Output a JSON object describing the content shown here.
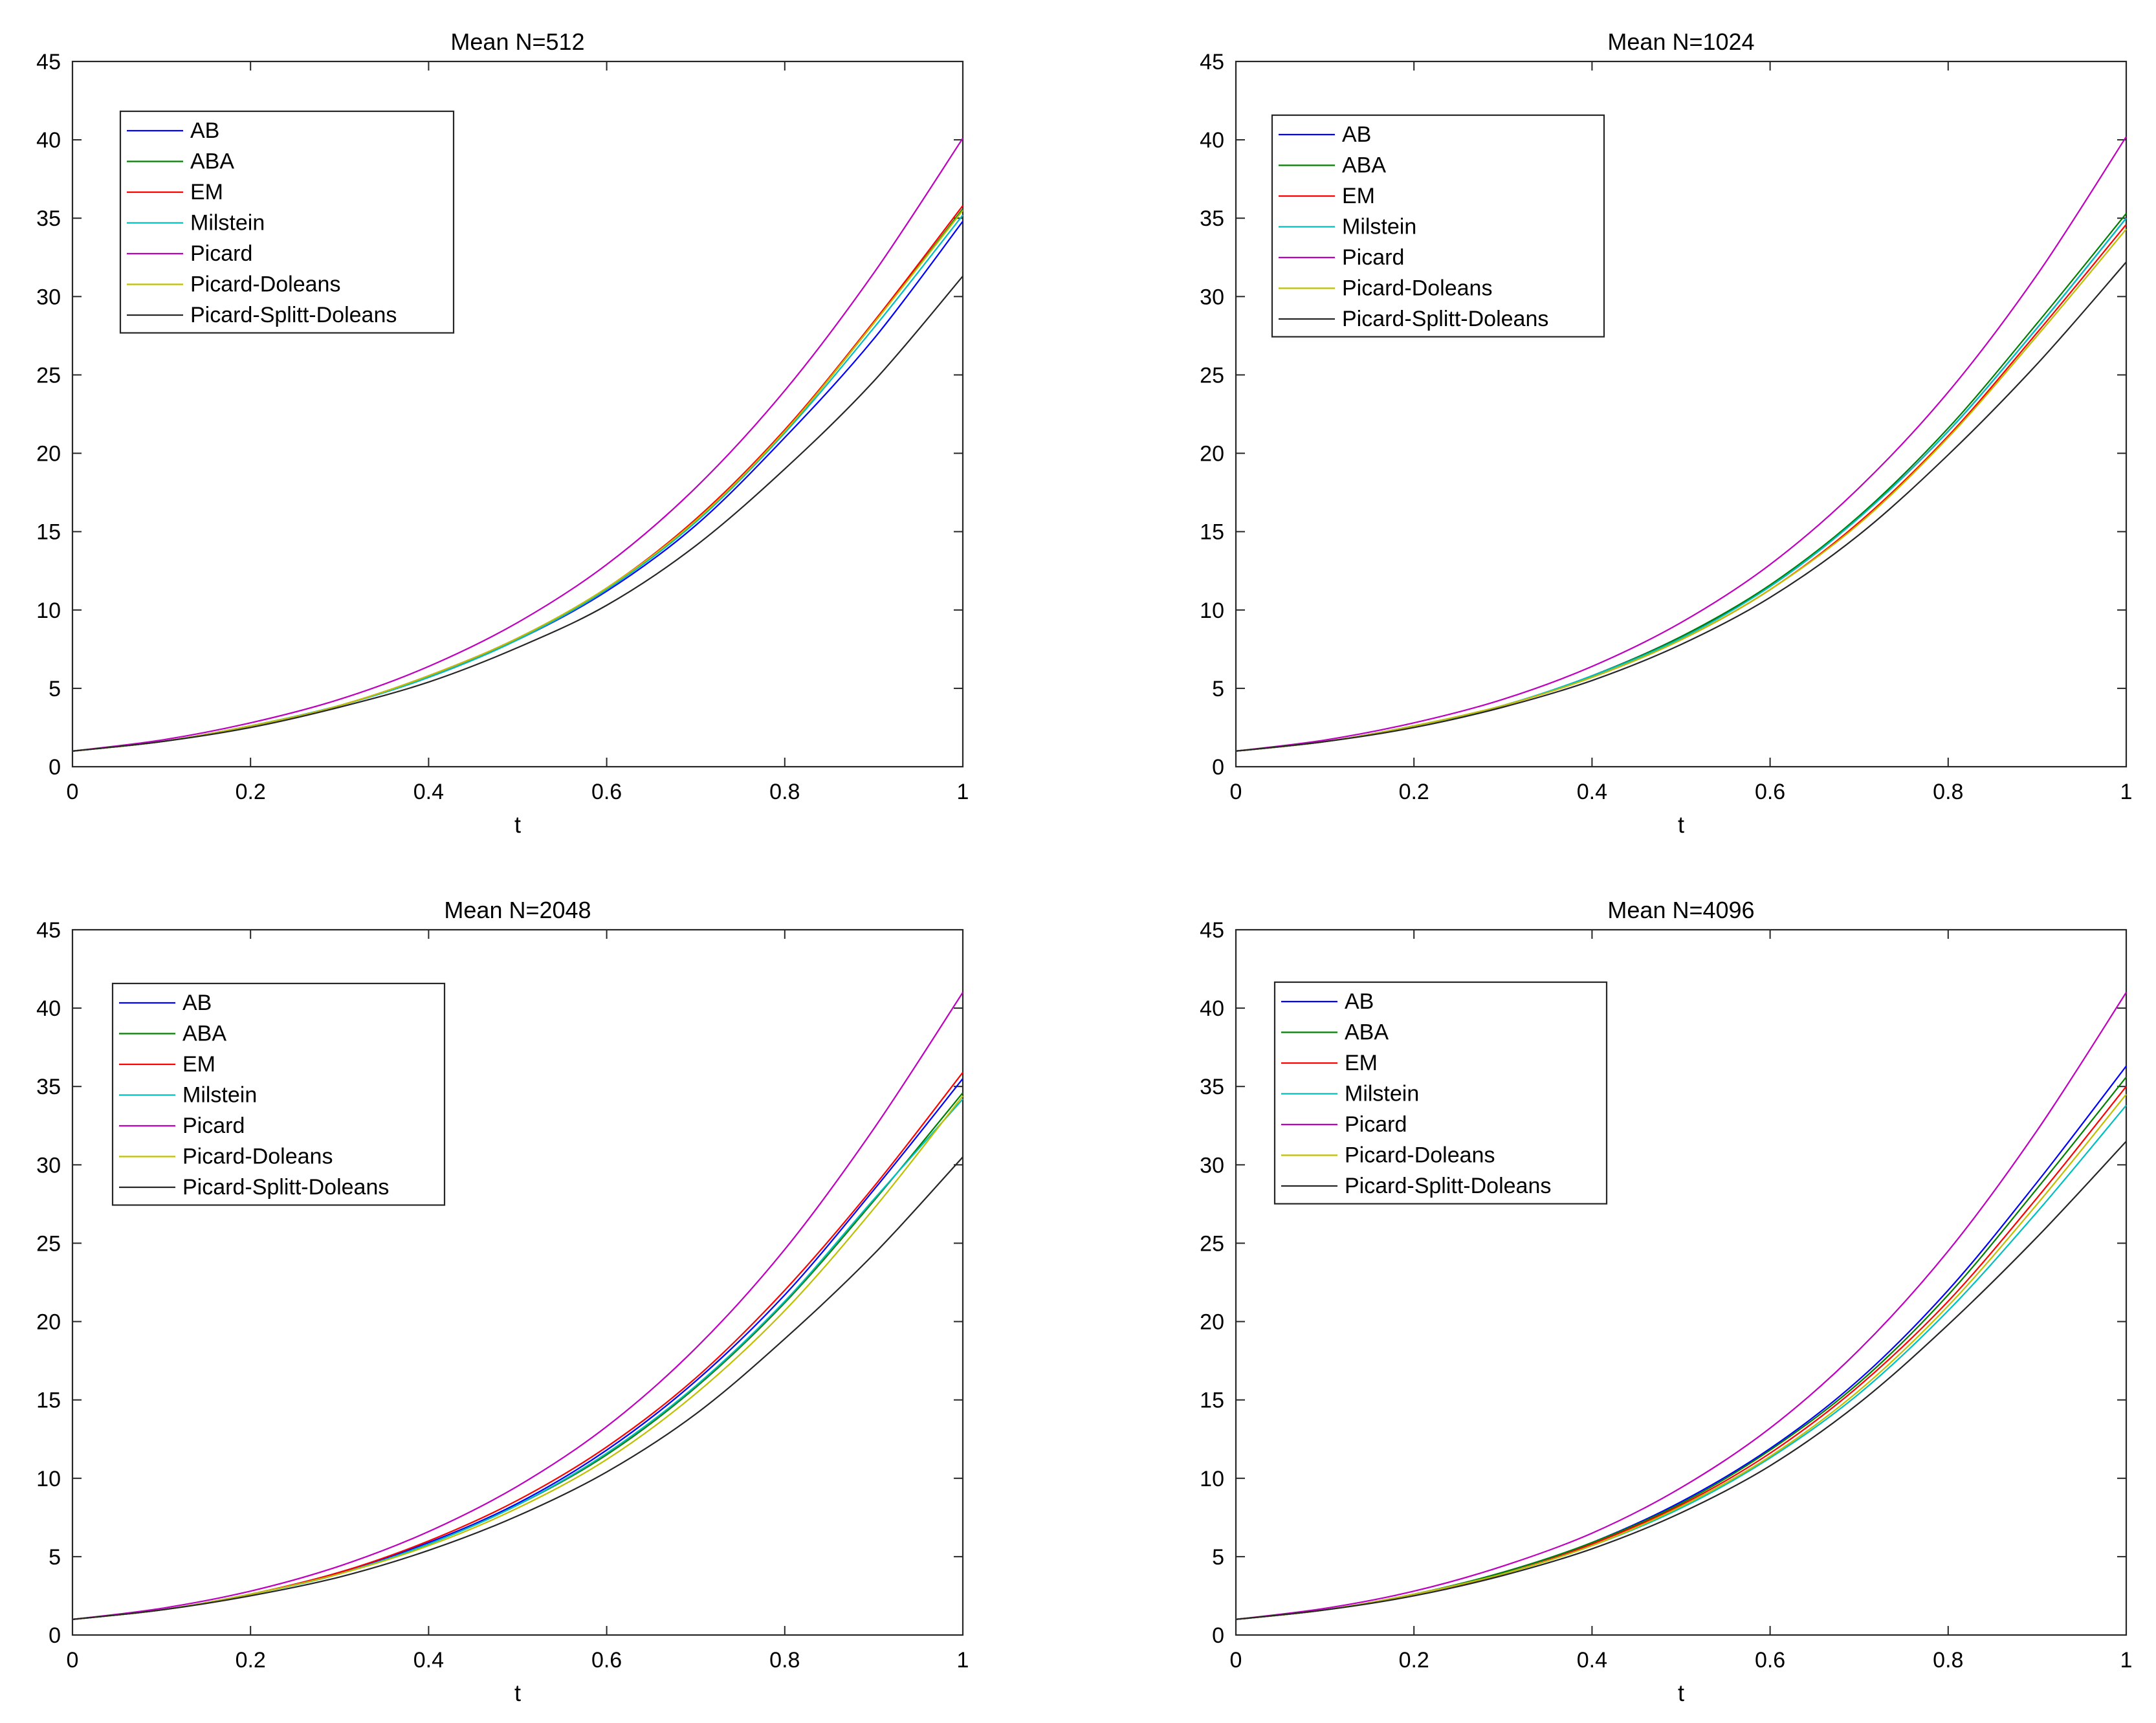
{
  "chart_data": [
    {
      "type": "line",
      "title": "Mean N=512",
      "xlabel": "t",
      "ylabel": "",
      "xlim": [
        0,
        1
      ],
      "ylim": [
        0,
        45
      ],
      "xticks": [
        0,
        0.2,
        0.4,
        0.6,
        0.8,
        1
      ],
      "xtick_labels": [
        "0",
        "0.2",
        "0.4",
        "0.6",
        "0.8",
        "1"
      ],
      "yticks": [
        0,
        5,
        10,
        15,
        20,
        25,
        30,
        35,
        40,
        45
      ],
      "ytick_labels": [
        "0",
        "5",
        "10",
        "15",
        "20",
        "25",
        "30",
        "35",
        "40",
        "45"
      ],
      "grid": false,
      "legend_position": "top-left",
      "x": [
        0,
        0.1,
        0.2,
        0.3,
        0.4,
        0.5,
        0.6,
        0.7,
        0.8,
        0.9,
        1.0
      ],
      "series": [
        {
          "name": "AB",
          "color": "#0000ff",
          "values": [
            1,
            1.6,
            2.6,
            3.9,
            5.7,
            8.1,
            11.2,
            15.4,
            21.0,
            27.3,
            34.8
          ]
        },
        {
          "name": "ABA",
          "color": "#008000",
          "values": [
            1,
            1.6,
            2.6,
            3.9,
            5.8,
            8.2,
            11.4,
            15.7,
            21.4,
            28.3,
            35.6
          ]
        },
        {
          "name": "EM",
          "color": "#ff0000",
          "values": [
            1,
            1.6,
            2.6,
            3.9,
            5.8,
            8.2,
            11.4,
            15.8,
            21.5,
            28.4,
            35.8
          ]
        },
        {
          "name": "Milstein",
          "color": "#00bfbf",
          "values": [
            1,
            1.6,
            2.6,
            3.9,
            5.7,
            8.1,
            11.3,
            15.6,
            21.3,
            28.0,
            35.2
          ]
        },
        {
          "name": "Picard",
          "color": "#bf00bf",
          "values": [
            1,
            1.7,
            2.8,
            4.3,
            6.4,
            9.2,
            12.9,
            17.8,
            24.0,
            31.5,
            40.1
          ]
        },
        {
          "name": "Picard-Doleans",
          "color": "#bfbf00",
          "values": [
            1,
            1.6,
            2.6,
            3.9,
            5.8,
            8.2,
            11.4,
            15.7,
            21.4,
            28.3,
            35.5
          ]
        },
        {
          "name": "Picard-Splitt-Doleans",
          "color": "#262626",
          "values": [
            1,
            1.6,
            2.5,
            3.8,
            5.4,
            7.6,
            10.3,
            14.1,
            19.0,
            24.6,
            31.3
          ]
        }
      ]
    },
    {
      "type": "line",
      "title": "Mean N=1024",
      "xlabel": "t",
      "ylabel": "",
      "xlim": [
        0,
        1
      ],
      "ylim": [
        0,
        45
      ],
      "xticks": [
        0,
        0.2,
        0.4,
        0.6,
        0.8,
        1
      ],
      "xtick_labels": [
        "0",
        "0.2",
        "0.4",
        "0.6",
        "0.8",
        "1"
      ],
      "yticks": [
        0,
        5,
        10,
        15,
        20,
        25,
        30,
        35,
        40,
        45
      ],
      "ytick_labels": [
        "0",
        "5",
        "10",
        "15",
        "20",
        "25",
        "30",
        "35",
        "40",
        "45"
      ],
      "grid": false,
      "legend_position": "top-left",
      "x": [
        0,
        0.1,
        0.2,
        0.3,
        0.4,
        0.5,
        0.6,
        0.7,
        0.8,
        0.9,
        1.0
      ],
      "series": [
        {
          "name": "AB",
          "color": "#0000ff",
          "values": [
            1,
            1.6,
            2.6,
            3.9,
            5.8,
            8.3,
            11.5,
            15.9,
            21.4,
            28.0,
            35.0
          ]
        },
        {
          "name": "ABA",
          "color": "#008000",
          "values": [
            1,
            1.6,
            2.6,
            3.9,
            5.8,
            8.3,
            11.6,
            16.0,
            21.6,
            28.3,
            35.3
          ]
        },
        {
          "name": "EM",
          "color": "#ff0000",
          "values": [
            1,
            1.6,
            2.6,
            3.9,
            5.7,
            8.1,
            11.3,
            15.6,
            21.1,
            27.7,
            34.6
          ]
        },
        {
          "name": "Milstein",
          "color": "#00bfbf",
          "values": [
            1,
            1.6,
            2.6,
            3.9,
            5.8,
            8.2,
            11.5,
            15.9,
            21.4,
            28.0,
            35.0
          ]
        },
        {
          "name": "Picard",
          "color": "#bf00bf",
          "values": [
            1,
            1.7,
            2.8,
            4.3,
            6.4,
            9.2,
            12.9,
            17.8,
            23.9,
            31.4,
            40.2
          ]
        },
        {
          "name": "Picard-Doleans",
          "color": "#bfbf00",
          "values": [
            1,
            1.6,
            2.6,
            3.9,
            5.7,
            8.1,
            11.3,
            15.5,
            21.0,
            27.5,
            34.3
          ]
        },
        {
          "name": "Picard-Splitt-Doleans",
          "color": "#262626",
          "values": [
            1,
            1.6,
            2.5,
            3.8,
            5.5,
            7.8,
            10.8,
            14.8,
            19.9,
            25.7,
            32.2
          ]
        }
      ]
    },
    {
      "type": "line",
      "title": "Mean N=2048",
      "xlabel": "t",
      "ylabel": "",
      "xlim": [
        0,
        1
      ],
      "ylim": [
        0,
        45
      ],
      "xticks": [
        0,
        0.2,
        0.4,
        0.6,
        0.8,
        1
      ],
      "xtick_labels": [
        "0",
        "0.2",
        "0.4",
        "0.6",
        "0.8",
        "1"
      ],
      "yticks": [
        0,
        5,
        10,
        15,
        20,
        25,
        30,
        35,
        40,
        45
      ],
      "ytick_labels": [
        "0",
        "5",
        "10",
        "15",
        "20",
        "25",
        "30",
        "35",
        "40",
        "45"
      ],
      "grid": false,
      "legend_position": "top-left",
      "x": [
        0,
        0.1,
        0.2,
        0.3,
        0.4,
        0.5,
        0.6,
        0.7,
        0.8,
        0.9,
        1.0
      ],
      "series": [
        {
          "name": "AB",
          "color": "#0000ff",
          "values": [
            1,
            1.6,
            2.6,
            4.0,
            5.9,
            8.4,
            11.8,
            16.2,
            21.7,
            28.4,
            35.5
          ]
        },
        {
          "name": "ABA",
          "color": "#008000",
          "values": [
            1,
            1.6,
            2.6,
            3.9,
            5.8,
            8.3,
            11.5,
            15.8,
            21.2,
            27.7,
            34.6
          ]
        },
        {
          "name": "EM",
          "color": "#ff0000",
          "values": [
            1,
            1.6,
            2.6,
            4.0,
            6.0,
            8.6,
            12.0,
            16.4,
            22.0,
            28.6,
            35.9
          ]
        },
        {
          "name": "Milstein",
          "color": "#00bfbf",
          "values": [
            1,
            1.6,
            2.6,
            3.9,
            5.8,
            8.3,
            11.6,
            15.9,
            21.3,
            27.8,
            34.2
          ]
        },
        {
          "name": "Picard",
          "color": "#bf00bf",
          "values": [
            1,
            1.7,
            2.8,
            4.4,
            6.6,
            9.5,
            13.3,
            18.3,
            24.6,
            32.3,
            41.0
          ]
        },
        {
          "name": "Picard-Doleans",
          "color": "#bfbf00",
          "values": [
            1,
            1.6,
            2.6,
            3.9,
            5.7,
            8.1,
            11.2,
            15.4,
            20.7,
            27.2,
            34.4
          ]
        },
        {
          "name": "Picard-Splitt-Doleans",
          "color": "#262626",
          "values": [
            1,
            1.6,
            2.5,
            3.7,
            5.4,
            7.6,
            10.4,
            14.1,
            18.9,
            24.3,
            30.5
          ]
        }
      ]
    },
    {
      "type": "line",
      "title": "Mean N=4096",
      "xlabel": "t",
      "ylabel": "",
      "xlim": [
        0,
        1
      ],
      "ylim": [
        0,
        45
      ],
      "xticks": [
        0,
        0.2,
        0.4,
        0.6,
        0.8,
        1
      ],
      "xtick_labels": [
        "0",
        "0.2",
        "0.4",
        "0.6",
        "0.8",
        "1"
      ],
      "yticks": [
        0,
        5,
        10,
        15,
        20,
        25,
        30,
        35,
        40,
        45
      ],
      "ytick_labels": [
        "0",
        "5",
        "10",
        "15",
        "20",
        "25",
        "30",
        "35",
        "40",
        "45"
      ],
      "grid": false,
      "legend_position": "top-left",
      "x": [
        0,
        0.1,
        0.2,
        0.3,
        0.4,
        0.5,
        0.6,
        0.7,
        0.8,
        0.9,
        1.0
      ],
      "series": [
        {
          "name": "AB",
          "color": "#0000ff",
          "values": [
            1,
            1.6,
            2.6,
            4.0,
            5.9,
            8.5,
            11.9,
            16.3,
            22.0,
            28.9,
            36.3
          ]
        },
        {
          "name": "ABA",
          "color": "#008000",
          "values": [
            1,
            1.6,
            2.6,
            4.0,
            5.9,
            8.4,
            11.8,
            16.1,
            21.7,
            28.5,
            35.6
          ]
        },
        {
          "name": "EM",
          "color": "#ff0000",
          "values": [
            1,
            1.6,
            2.6,
            3.9,
            5.8,
            8.3,
            11.6,
            15.9,
            21.3,
            27.9,
            35.0
          ]
        },
        {
          "name": "Milstein",
          "color": "#00bfbf",
          "values": [
            1,
            1.6,
            2.6,
            3.9,
            5.7,
            8.1,
            11.3,
            15.4,
            20.7,
            27.0,
            33.8
          ]
        },
        {
          "name": "Picard",
          "color": "#bf00bf",
          "values": [
            1,
            1.7,
            2.8,
            4.4,
            6.5,
            9.4,
            13.2,
            18.2,
            24.5,
            32.2,
            41.0
          ]
        },
        {
          "name": "Picard-Doleans",
          "color": "#bfbf00",
          "values": [
            1,
            1.6,
            2.6,
            3.9,
            5.7,
            8.2,
            11.4,
            15.6,
            21.0,
            27.5,
            34.5
          ]
        },
        {
          "name": "Picard-Splitt-Doleans",
          "color": "#262626",
          "values": [
            1,
            1.6,
            2.5,
            3.8,
            5.5,
            7.8,
            10.8,
            14.8,
            19.8,
            25.4,
            31.5
          ]
        }
      ]
    }
  ]
}
